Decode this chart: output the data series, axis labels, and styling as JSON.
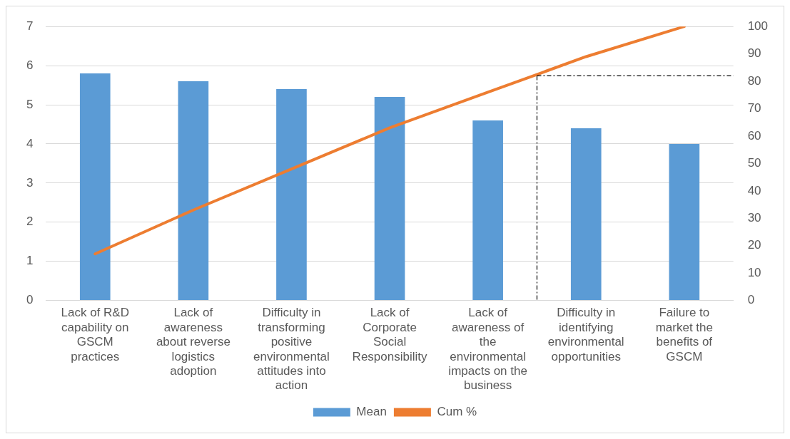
{
  "chart_data": {
    "type": "bar",
    "categories": [
      "Lack of R&D capability on GSCM practices",
      "Lack of awareness about reverse logistics adoption",
      "Difficulty in transforming positive environmental attitudes into action",
      "Lack of Corporate Social Responsibility",
      "Lack of awareness of the environmental impacts on the business",
      "Difficulty in identifying environmental opportunities",
      "Failure to market the benefits of GSCM"
    ],
    "series": [
      {
        "name": "Mean",
        "color": "#5b9bd5",
        "values": [
          5.8,
          5.6,
          5.4,
          5.2,
          4.6,
          4.4,
          4.0
        ]
      },
      {
        "name": "Cum %",
        "type": "line",
        "axis": "y2",
        "color": "#ed7d31",
        "values": [
          17,
          33,
          48,
          63,
          76,
          89,
          100
        ]
      }
    ],
    "ylim": [
      0,
      7
    ],
    "yticks": [
      0,
      1,
      2,
      3,
      4,
      5,
      6,
      7
    ],
    "y2lim": [
      0,
      100
    ],
    "y2ticks": [
      0,
      10,
      20,
      30,
      40,
      50,
      60,
      70,
      80,
      90,
      100
    ],
    "grid": "y",
    "legend": "bottom",
    "marker": "none",
    "ref_lines": [
      {
        "axis": "x",
        "value": "Difficulty in identifying environmental opportunities",
        "color": "#000000",
        "line_style": "dashed"
      },
      {
        "axis": "y2",
        "value": 82,
        "color": "#000000",
        "line_style": "dashed"
      }
    ]
  }
}
